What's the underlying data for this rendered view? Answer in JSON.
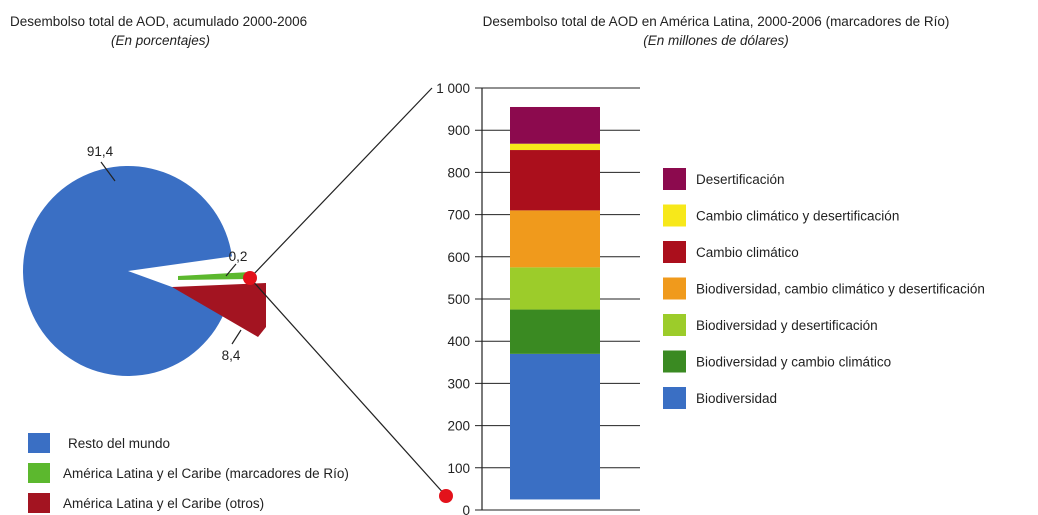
{
  "chart_data": [
    {
      "type": "pie",
      "title": "Desembolso total de AOD, acumulado 2000-2006",
      "subtitle": "(En porcentajes)",
      "slices": [
        {
          "name": "Resto del mundo",
          "value": 91.4,
          "label": "91,4",
          "color": "#3a6fc4"
        },
        {
          "name": "América Latina y el Caribe (marcadores de Río)",
          "value": 0.2,
          "label": "0,2",
          "color": "#5cb82e"
        },
        {
          "name": "América Latina y el Caribe (otros)",
          "value": 8.4,
          "label": "8,4",
          "color": "#a31421"
        }
      ],
      "legend_position": "bottom-left"
    },
    {
      "type": "bar",
      "stacked": true,
      "title": "Desembolso total de AOD en América Latina, 2000-2006 (marcadores de Río)",
      "subtitle": "(En millones de dólares)",
      "categories": [
        ""
      ],
      "ylim": [
        0,
        1000
      ],
      "yticks": [
        {
          "value": 0,
          "label": "0"
        },
        {
          "value": 100,
          "label": "100"
        },
        {
          "value": 200,
          "label": "200"
        },
        {
          "value": 300,
          "label": "300"
        },
        {
          "value": 400,
          "label": "400"
        },
        {
          "value": 500,
          "label": "500"
        },
        {
          "value": 600,
          "label": "600"
        },
        {
          "value": 700,
          "label": "700"
        },
        {
          "value": 800,
          "label": "800"
        },
        {
          "value": 900,
          "label": "900"
        },
        {
          "value": 1000,
          "label": "1 000"
        }
      ],
      "grid": true,
      "series": [
        {
          "name": "Biodiversidad",
          "values": [
            345
          ],
          "color": "#3a6fc4"
        },
        {
          "name": "Biodiversidad y cambio climático",
          "values": [
            105
          ],
          "color": "#3a8a22"
        },
        {
          "name": "Biodiversidad y desertificación",
          "values": [
            100
          ],
          "color": "#9ccc2a"
        },
        {
          "name": "Biodiversidad, cambio climático y desertificación",
          "values": [
            135
          ],
          "color": "#f09a1c"
        },
        {
          "name": "Cambio climático",
          "values": [
            143
          ],
          "color": "#ab0f1c"
        },
        {
          "name": "Cambio climático y desertificación",
          "values": [
            15
          ],
          "color": "#f7e81a"
        },
        {
          "name": "Desertificación",
          "values": [
            87
          ],
          "color": "#8c0a4e"
        }
      ],
      "legend_order": [
        "Desertificación",
        "Cambio climático y desertificación",
        "Cambio climático",
        "Biodiversidad, cambio climático y desertificación",
        "Biodiversidad y desertificación",
        "Biodiversidad y cambio climático",
        "Biodiversidad"
      ],
      "legend_position": "right"
    }
  ]
}
